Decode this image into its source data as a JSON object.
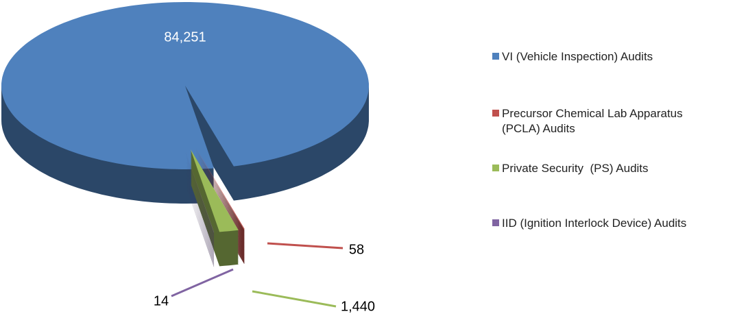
{
  "chart_data": {
    "type": "pie",
    "categories": [
      "VI (Vehicle Inspection) Audits",
      "Precursor Chemical Lab Apparatus (PCLA) Audits",
      "Private Security  (PS) Audits",
      "IID (Ignition Interlock Device) Audits"
    ],
    "values": [
      84251,
      58,
      1440,
      14
    ],
    "value_labels": [
      "84,251",
      "58",
      "1,440",
      "14"
    ],
    "colors": [
      "#4f81bd",
      "#c0504d",
      "#9bbb59",
      "#8064a2"
    ],
    "legend": "right"
  }
}
